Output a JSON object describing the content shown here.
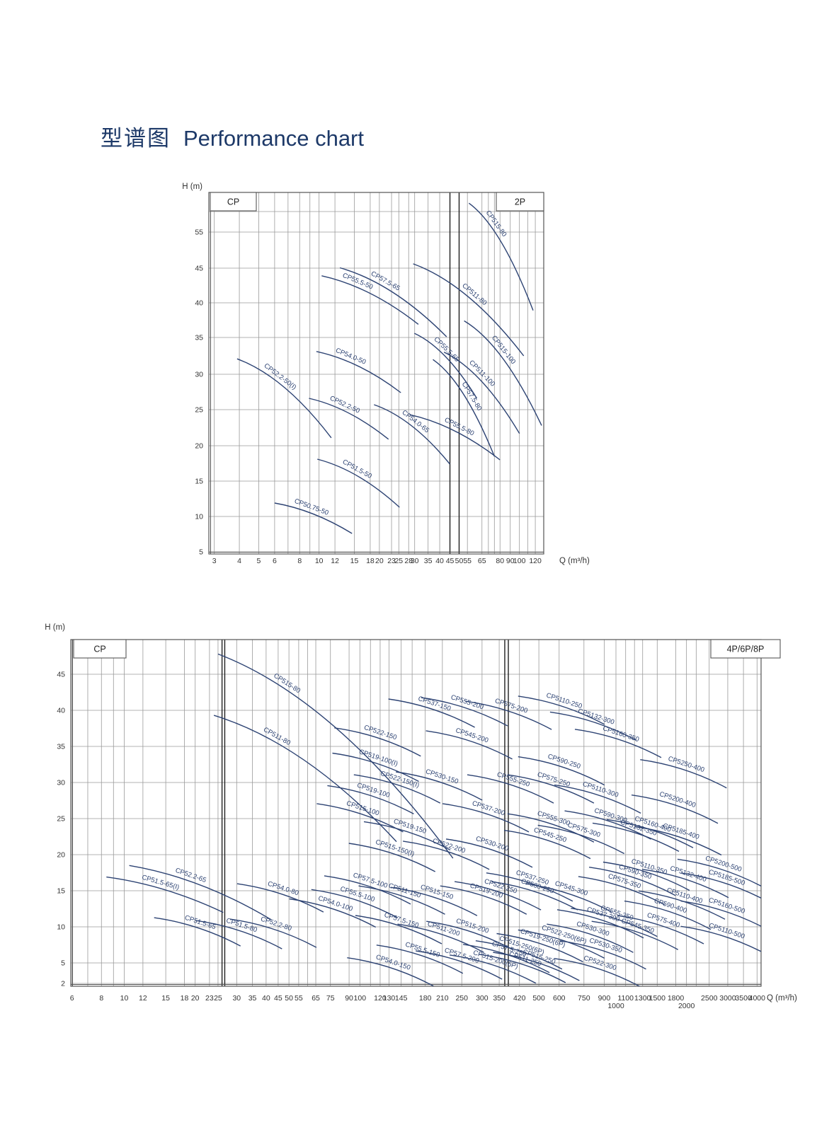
{
  "page": {
    "title_zh": "型谱图",
    "title_en": "Performance chart"
  },
  "colors": {
    "curve": "#2d4373",
    "grid": "#9a9a9a",
    "grid_dark": "#1f1f1f",
    "text": "#333333",
    "title": "#1d3968",
    "border": "#555555"
  },
  "charts": [
    {
      "id": "p2",
      "corner_left": "CP",
      "corner_right": "2P",
      "y_axis_label": "H (m)",
      "x_axis_label": "Q (m³/h)",
      "chart_data": {
        "type": "line",
        "x_scale": "log",
        "x_ticks": [
          3,
          4,
          5,
          6,
          8,
          10,
          12,
          15,
          18,
          20,
          23,
          25,
          28,
          30,
          35,
          40,
          45,
          50,
          55,
          65,
          80,
          90,
          100,
          120
        ],
        "x_extra_gridlines": [
          7,
          9,
          70,
          75,
          110
        ],
        "y_ticks": [
          5,
          10,
          15,
          20,
          25,
          30,
          35,
          40,
          45,
          55
        ],
        "separator_lines_q": [
          45,
          50
        ],
        "curves": [
          {
            "label": "CP50.75-50",
            "q1": 6.0,
            "h1": 11.9,
            "q2": 14.6,
            "h2": 7.6,
            "t": 0.45
          },
          {
            "label": "CP51.5-50",
            "q1": 9.8,
            "h1": 18.1,
            "q2": 25.2,
            "h2": 11.3,
            "t": 0.45
          },
          {
            "label": "CP52.2-50(I)",
            "q1": 3.9,
            "h1": 32.1,
            "q2": 11.5,
            "h2": 21.1,
            "t": 0.42
          },
          {
            "label": "CP52.2-50",
            "q1": 8.9,
            "h1": 26.6,
            "q2": 22.2,
            "h2": 20.9,
            "t": 0.42
          },
          {
            "label": "CP54.0-50",
            "q1": 9.7,
            "h1": 33.1,
            "q2": 25.6,
            "h2": 27.4,
            "t": 0.38
          },
          {
            "label": "CP55.5-50",
            "q1": 10.3,
            "h1": 43.9,
            "q2": 31.3,
            "h2": 36.9,
            "t": 0.35
          },
          {
            "label": "CP57.5-65",
            "q1": 12.7,
            "h1": 45.1,
            "q2": 43.3,
            "h2": 35.1,
            "t": 0.4
          },
          {
            "label": "CP55.5-65",
            "q1": 29.9,
            "h1": 35.6,
            "q2": 61.3,
            "h2": 26.6,
            "t": 0.45
          },
          {
            "label": "CP54.0-65",
            "q1": 18.8,
            "h1": 25.7,
            "q2": 45.0,
            "h2": 17.4,
            "t": 0.5
          },
          {
            "label": "CP55.5-80",
            "q1": 28.3,
            "h1": 24.3,
            "q2": 80.0,
            "h2": 18.0,
            "t": 0.52
          },
          {
            "label": "CP57.5-80",
            "q1": 37.0,
            "h1": 32.0,
            "q2": 75.0,
            "h2": 18.5,
            "t": 0.55
          },
          {
            "label": "CP511-80",
            "q1": 29.5,
            "h1": 46.2,
            "q2": 105.0,
            "h2": 32.5,
            "t": 0.52
          },
          {
            "label": "CP515-80",
            "q1": 56.0,
            "h1": 63.0,
            "q2": 117.0,
            "h2": 38.9,
            "t": 0.35
          },
          {
            "label": "CP511-100",
            "q1": 42.0,
            "h1": 33.0,
            "q2": 100.0,
            "h2": 21.7,
            "t": 0.45
          },
          {
            "label": "CP515-100",
            "q1": 53.0,
            "h1": 37.4,
            "q2": 129.0,
            "h2": 22.8,
            "t": 0.45
          }
        ]
      }
    },
    {
      "id": "p468",
      "corner_left": "CP",
      "corner_right": "4P/6P/8P",
      "y_axis_label": "H (m)",
      "x_axis_label": "Q (m³/h)",
      "chart_data": {
        "type": "line",
        "x_scale": "log",
        "x_ticks": [
          6,
          8,
          10,
          12,
          15,
          18,
          20,
          23,
          25,
          30,
          35,
          40,
          45,
          50,
          55,
          65,
          75,
          90,
          100,
          120,
          130,
          145,
          180,
          210,
          250,
          300,
          350,
          420,
          500,
          600,
          750,
          900,
          1000,
          1100,
          1300,
          1500,
          1800,
          2000,
          2500,
          3000,
          3500,
          4000
        ],
        "staggered_ticks": [
          1000,
          2000
        ],
        "x_extra_gridlines": [
          7,
          9,
          60,
          110,
          160,
          1200,
          2200
        ],
        "y_ticks": [
          2,
          5,
          10,
          15,
          20,
          25,
          30,
          35,
          40,
          45
        ],
        "separator_lines_q": [
          26,
          26.7,
          368,
          380
        ],
        "curves": [
          {
            "label": "CP515-80",
            "q1": 25,
            "h1": 47.8,
            "q2": 231,
            "h2": 19.5,
            "t": 0.28
          },
          {
            "label": "CP511-80",
            "q1": 24,
            "h1": 39.3,
            "q2": 139,
            "h2": 21.8,
            "t": 0.33
          },
          {
            "label": "CP51.5-65(I)",
            "q1": 8.4,
            "h1": 16.9,
            "q2": 26.3,
            "h2": 12.0,
            "t": 0.45
          },
          {
            "label": "CP52.2-65",
            "q1": 10.5,
            "h1": 18.5,
            "q2": 42.0,
            "h2": 11.0,
            "t": 0.42
          },
          {
            "label": "CP51.5-65",
            "q": 20,
            "h": 9.7
          },
          {
            "label": "CP51.5-80",
            "q": 30,
            "h": 9.3
          },
          {
            "label": "CP52.2-80",
            "q": 42,
            "h": 9.5
          },
          {
            "label": "CP54.0-80",
            "q": 45,
            "h": 14.4
          },
          {
            "label": "CP54.0-100",
            "q": 75,
            "h": 12.3
          },
          {
            "label": "CP55.5-100",
            "q": 93,
            "h": 13.6
          },
          {
            "label": "CP57.5-100",
            "q": 105,
            "h": 15.5
          },
          {
            "label": "CP522-150",
            "q": 115,
            "h": 36
          },
          {
            "label": "CP519-100(I)",
            "q": 113,
            "h": 32.5
          },
          {
            "label": "CP522-150(I)",
            "q": 137,
            "h": 29.5
          },
          {
            "label": "CP519-100",
            "q": 108,
            "h": 28
          },
          {
            "label": "CP515-100",
            "q": 98,
            "h": 25.5
          },
          {
            "label": "CP519-150",
            "q": 150,
            "h": 23
          },
          {
            "label": "CP515-150(I)",
            "q": 131,
            "h": 20
          },
          {
            "label": "CP522-200",
            "q": 213,
            "h": 20.3
          },
          {
            "label": "CP522-250",
            "q": 339,
            "h": 14.7
          },
          {
            "label": "CP537-150",
            "q": 187,
            "h": 40
          },
          {
            "label": "CP555-200",
            "q": 251,
            "h": 40.2
          },
          {
            "label": "CP545-200",
            "q": 262,
            "h": 35.6
          },
          {
            "label": "CP530-150",
            "q": 200,
            "h": 29.9
          },
          {
            "label": "CP530-200",
            "q": 314,
            "h": 20.6
          },
          {
            "label": "CP537-200",
            "q": 304,
            "h": 25.5
          },
          {
            "label": "CP537-250",
            "q": 451,
            "h": 15.9
          },
          {
            "label": "CP530-250",
            "q": 472,
            "h": 14.7
          },
          {
            "label": "CP545-250",
            "q": 529,
            "h": 21.8
          },
          {
            "label": "CP545-300",
            "q": 640,
            "h": 14.4
          },
          {
            "label": "CP511-150",
            "q": 143,
            "h": 14.1
          },
          {
            "label": "CP515-150",
            "q": 191,
            "h": 13.9
          },
          {
            "label": "CP519-200",
            "q": 298,
            "h": 14.1
          },
          {
            "label": "CP57.5-150",
            "q": 139,
            "h": 10
          },
          {
            "label": "CP511-200",
            "q": 203,
            "h": 8.8
          },
          {
            "label": "CP515-200",
            "q": 263,
            "h": 9.2
          },
          {
            "label": "CP55.5-150",
            "q": 168,
            "h": 5.9
          },
          {
            "label": "CP57.5-200",
            "q": 239,
            "h": 5.1
          },
          {
            "label": "CP511-250",
            "q": 423,
            "h": 4.6
          },
          {
            "label": "CP515-250",
            "q": 479,
            "h": 4.9
          },
          {
            "label": "CP54.0-150",
            "q": 129,
            "h": 4.1
          },
          {
            "label": "CP57.5-250",
            "q": 366,
            "h": 6.0
          },
          {
            "label": "CP515-200(6P)",
            "q": 324,
            "h": 4.5
          },
          {
            "label": "CP515-250(6P)",
            "q": 410,
            "h": 6.5
          },
          {
            "label": "CP519-250(6P)",
            "q": 495,
            "h": 7.5
          },
          {
            "label": "CP522-250(6P)",
            "q": 600,
            "h": 8.0
          },
          {
            "label": "CP555-250",
            "q": 380,
            "h": 29.5
          },
          {
            "label": "CP555-300",
            "q": 546,
            "h": 24.1
          },
          {
            "label": "CP575-200",
            "q": 373,
            "h": 39.7
          },
          {
            "label": "CP575-250",
            "q": 546,
            "h": 29.5
          },
          {
            "label": "CP575-300",
            "q": 717,
            "h": 22.5
          },
          {
            "label": "CP590-250",
            "q": 600,
            "h": 32
          },
          {
            "label": "CP590-300",
            "q": 912,
            "h": 24.5
          },
          {
            "label": "CP5110-250",
            "q": 600,
            "h": 40.4
          },
          {
            "label": "CP5110-300",
            "q": 832,
            "h": 28.1
          },
          {
            "label": "CP5132-300",
            "q": 800,
            "h": 38.2
          },
          {
            "label": "CP5160-350",
            "q": 1000,
            "h": 35.8
          },
          {
            "label": "CP5200-400",
            "q": 1745,
            "h": 26.7
          },
          {
            "label": "CP5250-400",
            "q": 1900,
            "h": 31.6
          },
          {
            "label": "CP5132-350",
            "q": 1190,
            "h": 22.8
          },
          {
            "label": "CP5160-400",
            "q": 1368,
            "h": 23.3
          },
          {
            "label": "CP5185-400",
            "q": 1806,
            "h": 22.3
          },
          {
            "label": "CP5200-500",
            "q": 2740,
            "h": 17.8
          },
          {
            "label": "CP5185-500",
            "q": 2830,
            "h": 15.9
          },
          {
            "label": "CP5110-350",
            "q": 1320,
            "h": 17.4
          },
          {
            "label": "CP590-350",
            "q": 1150,
            "h": 16.7
          },
          {
            "label": "CP575-350",
            "q": 1035,
            "h": 15.4
          },
          {
            "label": "CP5132-400",
            "q": 1937,
            "h": 16.4
          },
          {
            "label": "CP5110-400",
            "q": 1870,
            "h": 13.4
          },
          {
            "label": "CP5160-500",
            "q": 2830,
            "h": 12
          },
          {
            "label": "CP590-400",
            "q": 1627,
            "h": 12
          },
          {
            "label": "CP575-400",
            "q": 1518,
            "h": 10
          },
          {
            "label": "CP5110-500",
            "q": 2830,
            "h": 8.5
          },
          {
            "label": "CP555-350",
            "q": 965,
            "h": 11
          },
          {
            "label": "CP545-350",
            "q": 1179,
            "h": 9.2
          },
          {
            "label": "CP530-350",
            "q": 872,
            "h": 6.5
          },
          {
            "label": "CP537-300",
            "q": 853,
            "h": 10.8
          },
          {
            "label": "CP530-300",
            "q": 777,
            "h": 8.8
          },
          {
            "label": "CP522-300",
            "q": 829,
            "h": 4.0
          }
        ]
      }
    }
  ]
}
